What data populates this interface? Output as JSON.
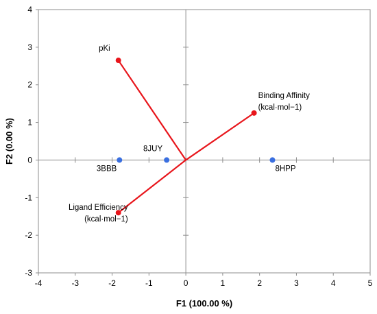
{
  "chart_data": {
    "type": "scatter",
    "title": "",
    "xlabel": "F1 (100.00 %)",
    "ylabel": "F2 (0.00 %)",
    "xlim": [
      -4,
      5
    ],
    "ylim": [
      -3,
      4
    ],
    "x_ticks": [
      -4,
      -3,
      -2,
      -1,
      0,
      1,
      2,
      3,
      4,
      5
    ],
    "y_ticks": [
      -3,
      -2,
      -1,
      0,
      1,
      2,
      3,
      4
    ],
    "grid": false,
    "legend": "none",
    "series": [
      {
        "kind": "variables",
        "color": "#e8151b",
        "points": [
          {
            "label": [
              "pKi"
            ],
            "x": -1.83,
            "y": 2.65
          },
          {
            "label": [
              "Binding Affinity",
              "(kcal·mol−1)"
            ],
            "x": 1.85,
            "y": 1.25
          },
          {
            "label": [
              "Ligand Efficiency",
              "(kcal·mol−1)"
            ],
            "x": -1.83,
            "y": -1.4
          }
        ]
      },
      {
        "kind": "observations",
        "color": "#3a6fe0",
        "points": [
          {
            "label": [
              "3BBB"
            ],
            "x": -1.8,
            "y": 0
          },
          {
            "label": [
              "8JUY"
            ],
            "x": -0.52,
            "y": 0
          },
          {
            "label": [
              "8HPP"
            ],
            "x": 2.35,
            "y": 0
          }
        ]
      }
    ]
  }
}
